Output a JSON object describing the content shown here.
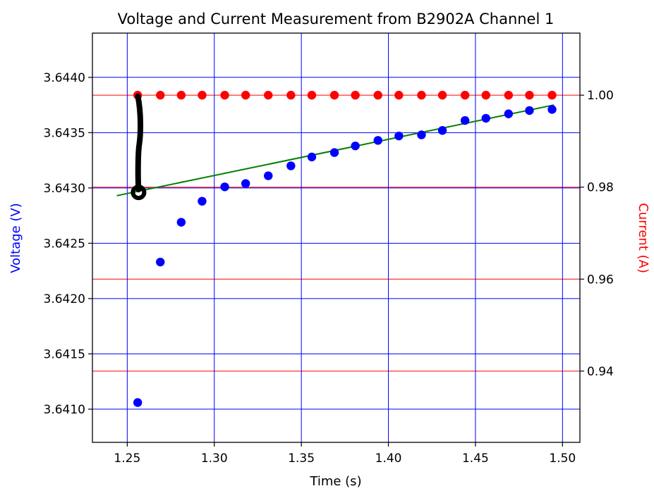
{
  "chart_data": {
    "type": "scatter",
    "title": "Voltage and Current Measurement from B2902A Channel 1",
    "xlabel": "Time (s)",
    "ylabel_left": "Voltage (V)",
    "ylabel_right": "Current (A)",
    "xlim": [
      1.23,
      1.51
    ],
    "ylim_left": [
      3.6407,
      3.6444
    ],
    "ylim_right": [
      0.9245,
      1.0135
    ],
    "x_ticks": [
      1.25,
      1.3,
      1.35,
      1.4,
      1.45,
      1.5
    ],
    "x_tick_labels": [
      "1.25",
      "1.30",
      "1.35",
      "1.40",
      "1.45",
      "1.50"
    ],
    "y_left_ticks": [
      3.641,
      3.6415,
      3.642,
      3.6425,
      3.643,
      3.6435,
      3.644
    ],
    "y_left_tick_labels": [
      "3.6410",
      "3.6415",
      "3.6420",
      "3.6425",
      "3.6430",
      "3.6435",
      "3.6440"
    ],
    "y_right_ticks": [
      0.94,
      0.96,
      0.98,
      1.0
    ],
    "y_right_tick_labels": [
      "0.94",
      "0.96",
      "0.98",
      "1.00"
    ],
    "grid": true,
    "colors": {
      "voltage": "#0000ff",
      "current": "#ff0000",
      "fit": "#008000",
      "annotation": "#000000",
      "left_axis_label": "#0000ff",
      "right_axis_label": "#ff0000"
    },
    "series": [
      {
        "axis": "left",
        "color": "#0000ff",
        "x": [
          1.256,
          1.269,
          1.281,
          1.293,
          1.306,
          1.318,
          1.331,
          1.344,
          1.356,
          1.369,
          1.381,
          1.394,
          1.406,
          1.419,
          1.431,
          1.444,
          1.456,
          1.469,
          1.481,
          1.494
        ],
        "values": [
          3.64106,
          3.64233,
          3.64269,
          3.64288,
          3.64301,
          3.64304,
          3.64311,
          3.6432,
          3.64328,
          3.64332,
          3.64338,
          3.64343,
          3.64347,
          3.64348,
          3.64352,
          3.64361,
          3.64363,
          3.64367,
          3.6437,
          3.64371
        ]
      },
      {
        "axis": "right",
        "color": "#ff0000",
        "x": [
          1.256,
          1.269,
          1.281,
          1.293,
          1.306,
          1.318,
          1.331,
          1.344,
          1.356,
          1.369,
          1.381,
          1.394,
          1.406,
          1.419,
          1.431,
          1.444,
          1.456,
          1.469,
          1.481,
          1.494
        ],
        "values": [
          1.0,
          1.0,
          1.0,
          1.0,
          1.0,
          1.0,
          1.0,
          1.0,
          1.0,
          1.0,
          1.0,
          1.0,
          1.0,
          1.0,
          1.0,
          1.0,
          1.0,
          1.0,
          1.0,
          1.0
        ]
      }
    ],
    "fit_line": {
      "axis": "left",
      "color": "#008000",
      "x": [
        1.244,
        1.495
      ],
      "values": [
        3.64293,
        3.64375
      ]
    },
    "annotation": {
      "color": "#000000",
      "x": [
        1.2565,
        1.2565
      ],
      "values": [
        3.64383,
        3.64296
      ]
    }
  }
}
